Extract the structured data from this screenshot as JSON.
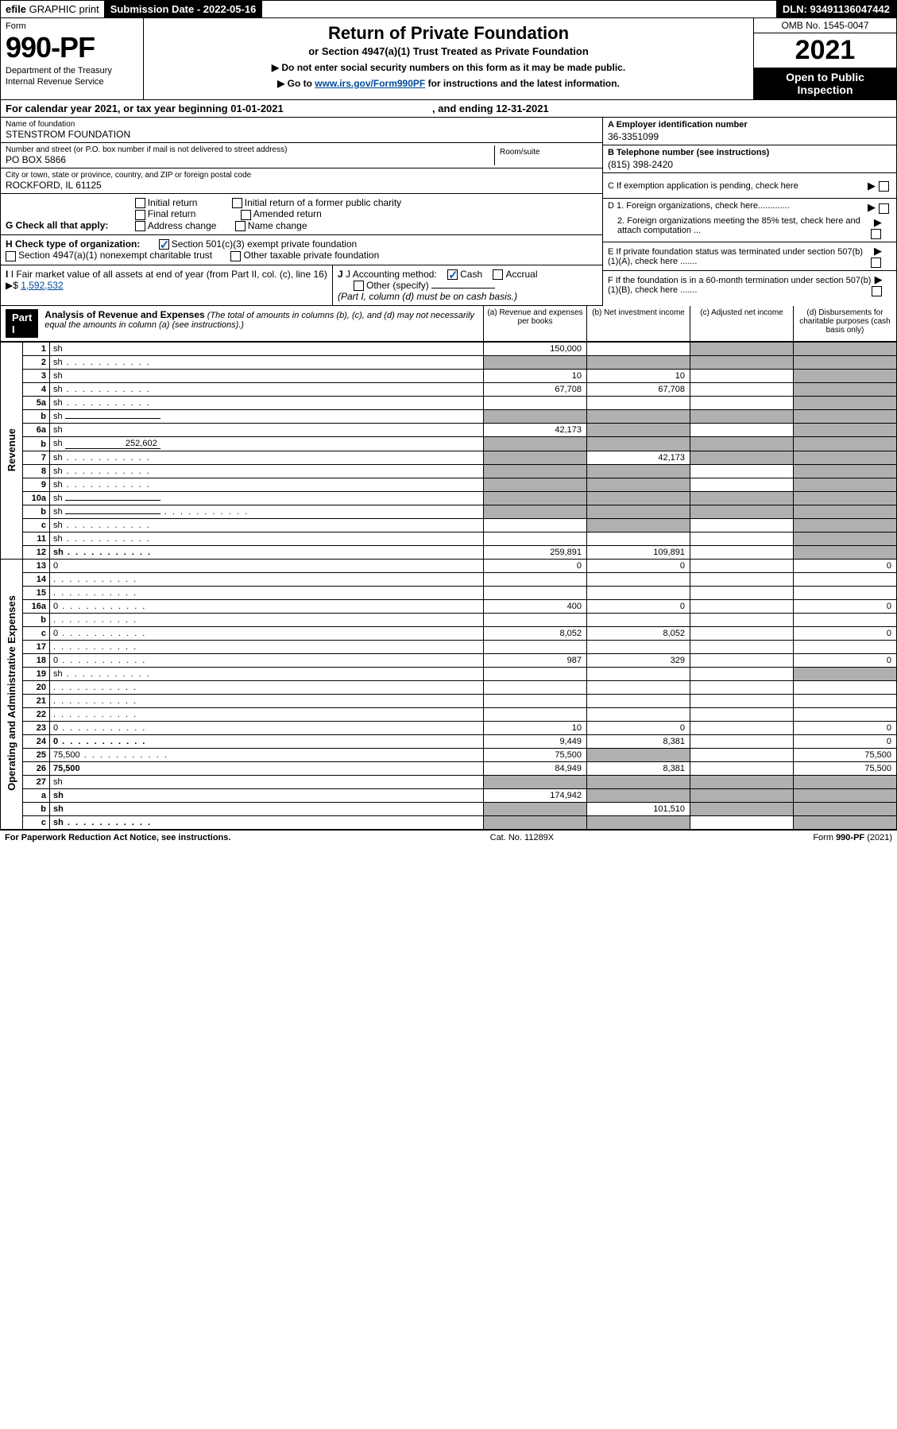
{
  "topbar": {
    "efile_prefix": "efile",
    "efile_suffix": " GRAPHIC print",
    "submission_label": "Submission Date - ",
    "submission_date": "2022-05-16",
    "dln_label": "DLN: ",
    "dln": "93491136047442"
  },
  "header": {
    "form_label": "Form",
    "form_number": "990-PF",
    "dept1": "Department of the Treasury",
    "dept2": "Internal Revenue Service",
    "title": "Return of Private Foundation",
    "subtitle": "or Section 4947(a)(1) Trust Treated as Private Foundation",
    "instr1": "▶ Do not enter social security numbers on this form as it may be made public.",
    "instr2_pre": "▶ Go to ",
    "instr2_link": "www.irs.gov/Form990PF",
    "instr2_post": " for instructions and the latest information.",
    "omb": "OMB No. 1545-0047",
    "year": "2021",
    "openpub1": "Open to Public",
    "openpub2": "Inspection"
  },
  "calendar": {
    "text_pre": "For calendar year 2021, or tax year beginning ",
    "begin": "01-01-2021",
    "text_mid": " , and ending ",
    "end": "12-31-2021"
  },
  "name_block": {
    "name_label": "Name of foundation",
    "name": "STENSTROM FOUNDATION",
    "addr_label": "Number and street (or P.O. box number if mail is not delivered to street address)",
    "room_label": "Room/suite",
    "addr": "PO BOX 5866",
    "city_label": "City or town, state or province, country, and ZIP or foreign postal code",
    "city": "ROCKFORD, IL  61125"
  },
  "right_block": {
    "a_label": "A Employer identification number",
    "a_val": "36-3351099",
    "b_label": "B Telephone number (see instructions)",
    "b_val": "(815) 398-2420",
    "c_label": "C If exemption application is pending, check here",
    "d1_label": "D 1. Foreign organizations, check here.............",
    "d2_label": "2. Foreign organizations meeting the 85% test, check here and attach computation ...",
    "e_label": "E  If private foundation status was terminated under section 507(b)(1)(A), check here .......",
    "f_label": "F  If the foundation is in a 60-month termination under section 507(b)(1)(B), check here ......."
  },
  "g": {
    "label": "G Check all that apply:",
    "opts": [
      "Initial return",
      "Final return",
      "Address change",
      "Initial return of a former public charity",
      "Amended return",
      "Name change"
    ]
  },
  "h": {
    "label": "H Check type of organization:",
    "opt1": "Section 501(c)(3) exempt private foundation",
    "opt2": "Section 4947(a)(1) nonexempt charitable trust",
    "opt3": "Other taxable private foundation"
  },
  "ij": {
    "i_label": "I Fair market value of all assets at end of year (from Part II, col. (c), line 16)",
    "i_val": "1,592,532",
    "j_label": "J Accounting method:",
    "j_cash": "Cash",
    "j_accrual": "Accrual",
    "j_other": "Other (specify)",
    "j_note": "(Part I, column (d) must be on cash basis.)"
  },
  "part1": {
    "hdr": "Part I",
    "title": "Analysis of Revenue and Expenses",
    "note": " (The total of amounts in columns (b), (c), and (d) may not necessarily equal the amounts in column (a) (see instructions).)",
    "col_a": "(a)   Revenue and expenses per books",
    "col_b": "(b)   Net investment income",
    "col_c": "(c)   Adjusted net income",
    "col_d": "(d)   Disbursements for charitable purposes (cash basis only)"
  },
  "sidelabels": {
    "rev": "Revenue",
    "exp": "Operating and Administrative Expenses"
  },
  "rows": [
    {
      "n": "1",
      "d": "sh",
      "a": "150,000",
      "b": "",
      "c": "sh"
    },
    {
      "n": "2",
      "d": "sh",
      "dots": true,
      "a": "sh",
      "b": "sh",
      "c": "sh"
    },
    {
      "n": "3",
      "d": "sh",
      "a": "10",
      "b": "10",
      "c": ""
    },
    {
      "n": "4",
      "d": "sh",
      "dots": true,
      "a": "67,708",
      "b": "67,708",
      "c": ""
    },
    {
      "n": "5a",
      "d": "sh",
      "dots": true,
      "a": "",
      "b": "",
      "c": ""
    },
    {
      "n": "b",
      "d": "sh",
      "inline": true,
      "a": "sh",
      "b": "sh",
      "c": "sh"
    },
    {
      "n": "6a",
      "d": "sh",
      "a": "42,173",
      "b": "sh",
      "c": ""
    },
    {
      "n": "b",
      "d": "sh",
      "inline_val": "252,602",
      "a": "sh",
      "b": "sh",
      "c": "sh"
    },
    {
      "n": "7",
      "d": "sh",
      "dots": true,
      "a": "sh",
      "b": "42,173",
      "c": "sh"
    },
    {
      "n": "8",
      "d": "sh",
      "dots": true,
      "a": "sh",
      "b": "sh",
      "c": ""
    },
    {
      "n": "9",
      "d": "sh",
      "dots": true,
      "a": "sh",
      "b": "sh",
      "c": ""
    },
    {
      "n": "10a",
      "d": "sh",
      "inline": true,
      "a": "sh",
      "b": "sh",
      "c": "sh"
    },
    {
      "n": "b",
      "d": "sh",
      "dots": true,
      "inline": true,
      "a": "sh",
      "b": "sh",
      "c": "sh"
    },
    {
      "n": "c",
      "d": "sh",
      "dots": true,
      "a": "",
      "b": "sh",
      "c": ""
    },
    {
      "n": "11",
      "d": "sh",
      "dots": true,
      "a": "",
      "b": "",
      "c": ""
    },
    {
      "n": "12",
      "d": "sh",
      "dots": true,
      "bold": true,
      "a": "259,891",
      "b": "109,891",
      "c": ""
    },
    {
      "n": "13",
      "d": "0",
      "a": "0",
      "b": "0",
      "c": ""
    },
    {
      "n": "14",
      "d": "",
      "dots": true,
      "a": "",
      "b": "",
      "c": ""
    },
    {
      "n": "15",
      "d": "",
      "dots": true,
      "a": "",
      "b": "",
      "c": ""
    },
    {
      "n": "16a",
      "d": "0",
      "dots": true,
      "a": "400",
      "b": "0",
      "c": ""
    },
    {
      "n": "b",
      "d": "",
      "dots": true,
      "a": "",
      "b": "",
      "c": ""
    },
    {
      "n": "c",
      "d": "0",
      "dots": true,
      "a": "8,052",
      "b": "8,052",
      "c": ""
    },
    {
      "n": "17",
      "d": "",
      "dots": true,
      "a": "",
      "b": "",
      "c": ""
    },
    {
      "n": "18",
      "d": "0",
      "dots": true,
      "a": "987",
      "b": "329",
      "c": ""
    },
    {
      "n": "19",
      "d": "sh",
      "dots": true,
      "a": "",
      "b": "",
      "c": ""
    },
    {
      "n": "20",
      "d": "",
      "dots": true,
      "a": "",
      "b": "",
      "c": ""
    },
    {
      "n": "21",
      "d": "",
      "dots": true,
      "a": "",
      "b": "",
      "c": ""
    },
    {
      "n": "22",
      "d": "",
      "dots": true,
      "a": "",
      "b": "",
      "c": ""
    },
    {
      "n": "23",
      "d": "0",
      "dots": true,
      "a": "10",
      "b": "0",
      "c": ""
    },
    {
      "n": "24",
      "d": "0",
      "dots": true,
      "bold": true,
      "a": "9,449",
      "b": "8,381",
      "c": ""
    },
    {
      "n": "25",
      "d": "75,500",
      "dots": true,
      "a": "75,500",
      "b": "sh",
      "c": ""
    },
    {
      "n": "26",
      "d": "75,500",
      "bold": true,
      "a": "84,949",
      "b": "8,381",
      "c": ""
    },
    {
      "n": "27",
      "d": "sh",
      "a": "sh",
      "b": "sh",
      "c": "sh"
    },
    {
      "n": "a",
      "d": "sh",
      "bold": true,
      "a": "174,942",
      "b": "sh",
      "c": "sh"
    },
    {
      "n": "b",
      "d": "sh",
      "bold": true,
      "a": "sh",
      "b": "101,510",
      "c": "sh"
    },
    {
      "n": "c",
      "d": "sh",
      "dots": true,
      "bold": true,
      "a": "sh",
      "b": "sh",
      "c": ""
    }
  ],
  "footer": {
    "left": "For Paperwork Reduction Act Notice, see instructions.",
    "mid": "Cat. No. 11289X",
    "right": "Form 990-PF (2021)"
  }
}
